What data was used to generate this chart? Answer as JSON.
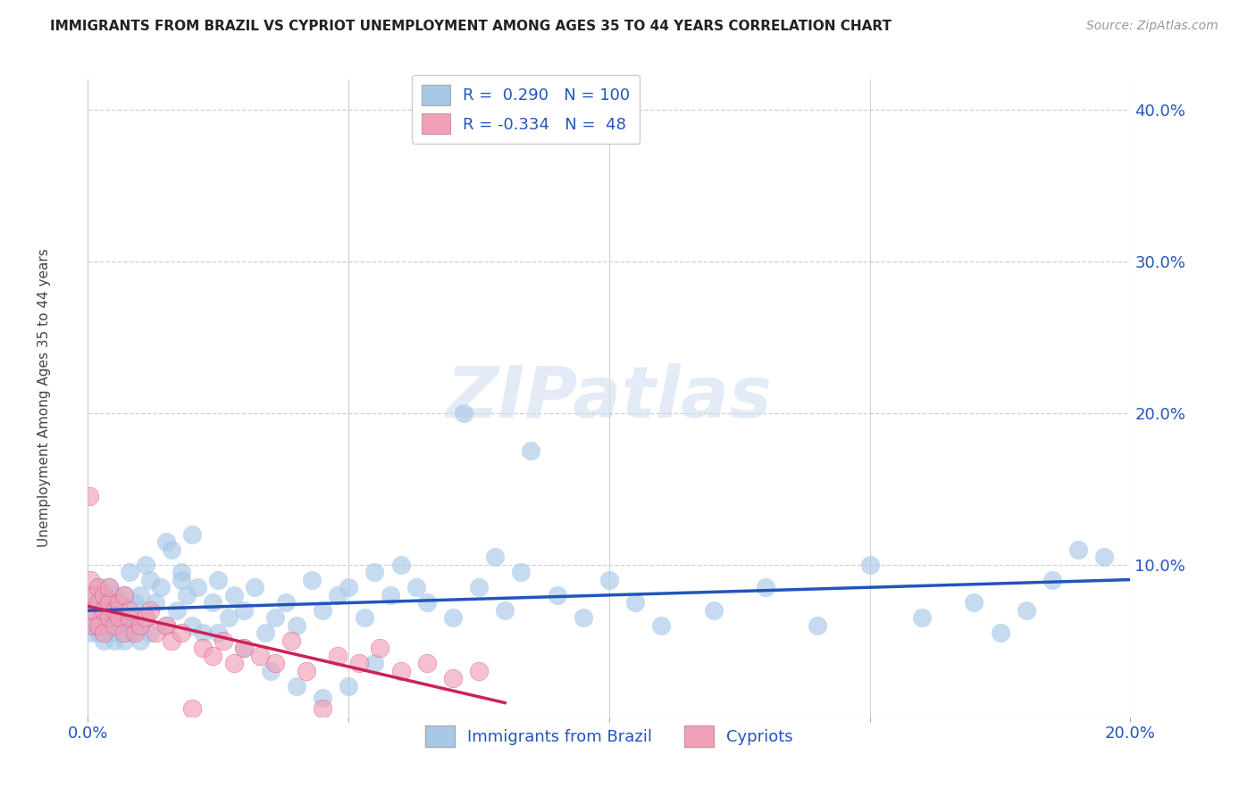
{
  "title": "IMMIGRANTS FROM BRAZIL VS CYPRIOT UNEMPLOYMENT AMONG AGES 35 TO 44 YEARS CORRELATION CHART",
  "source": "Source: ZipAtlas.com",
  "ylabel": "Unemployment Among Ages 35 to 44 years",
  "xlim": [
    0.0,
    0.2
  ],
  "ylim": [
    0.0,
    0.42
  ],
  "xticks": [
    0.0,
    0.05,
    0.1,
    0.15,
    0.2
  ],
  "yticks": [
    0.0,
    0.1,
    0.2,
    0.3,
    0.4
  ],
  "background_color": "#ffffff",
  "grid_color": "#d0d0d0",
  "blue_scatter_color": "#a8c8e8",
  "blue_line_color": "#2255bb",
  "pink_scatter_color": "#f0a0b8",
  "pink_line_color": "#cc2255",
  "legend_R_blue": "0.290",
  "legend_N_blue": "100",
  "legend_R_pink": "-0.334",
  "legend_N_pink": "48",
  "watermark": "ZIPatlas",
  "brazil_x": [
    0.0005,
    0.001,
    0.001,
    0.001,
    0.002,
    0.002,
    0.002,
    0.002,
    0.003,
    0.003,
    0.003,
    0.003,
    0.004,
    0.004,
    0.004,
    0.004,
    0.005,
    0.005,
    0.005,
    0.005,
    0.006,
    0.006,
    0.006,
    0.007,
    0.007,
    0.007,
    0.008,
    0.008,
    0.008,
    0.009,
    0.009,
    0.01,
    0.01,
    0.011,
    0.011,
    0.012,
    0.012,
    0.013,
    0.014,
    0.015,
    0.016,
    0.017,
    0.018,
    0.019,
    0.02,
    0.021,
    0.022,
    0.024,
    0.025,
    0.027,
    0.028,
    0.03,
    0.032,
    0.034,
    0.036,
    0.038,
    0.04,
    0.043,
    0.045,
    0.048,
    0.05,
    0.053,
    0.055,
    0.058,
    0.06,
    0.063,
    0.065,
    0.07,
    0.072,
    0.075,
    0.078,
    0.08,
    0.083,
    0.085,
    0.09,
    0.095,
    0.1,
    0.105,
    0.11,
    0.12,
    0.13,
    0.14,
    0.15,
    0.16,
    0.17,
    0.175,
    0.18,
    0.185,
    0.19,
    0.195,
    0.015,
    0.018,
    0.02,
    0.025,
    0.03,
    0.035,
    0.04,
    0.045,
    0.05,
    0.055
  ],
  "brazil_y": [
    0.055,
    0.06,
    0.07,
    0.08,
    0.055,
    0.065,
    0.075,
    0.085,
    0.06,
    0.07,
    0.08,
    0.05,
    0.055,
    0.065,
    0.075,
    0.085,
    0.05,
    0.06,
    0.07,
    0.08,
    0.055,
    0.065,
    0.075,
    0.05,
    0.06,
    0.08,
    0.055,
    0.065,
    0.095,
    0.06,
    0.075,
    0.05,
    0.08,
    0.065,
    0.1,
    0.055,
    0.09,
    0.075,
    0.085,
    0.06,
    0.11,
    0.07,
    0.095,
    0.08,
    0.06,
    0.085,
    0.055,
    0.075,
    0.09,
    0.065,
    0.08,
    0.07,
    0.085,
    0.055,
    0.065,
    0.075,
    0.06,
    0.09,
    0.07,
    0.08,
    0.085,
    0.065,
    0.095,
    0.08,
    0.1,
    0.085,
    0.075,
    0.065,
    0.2,
    0.085,
    0.105,
    0.07,
    0.095,
    0.175,
    0.08,
    0.065,
    0.09,
    0.075,
    0.06,
    0.07,
    0.085,
    0.06,
    0.1,
    0.065,
    0.075,
    0.055,
    0.07,
    0.09,
    0.11,
    0.105,
    0.115,
    0.09,
    0.12,
    0.055,
    0.045,
    0.03,
    0.02,
    0.012,
    0.02,
    0.035
  ],
  "cypriot_x": [
    0.0003,
    0.0005,
    0.001,
    0.001,
    0.001,
    0.002,
    0.002,
    0.002,
    0.003,
    0.003,
    0.003,
    0.004,
    0.004,
    0.004,
    0.005,
    0.005,
    0.006,
    0.006,
    0.007,
    0.007,
    0.008,
    0.008,
    0.009,
    0.01,
    0.011,
    0.012,
    0.013,
    0.015,
    0.016,
    0.018,
    0.02,
    0.022,
    0.024,
    0.026,
    0.028,
    0.03,
    0.033,
    0.036,
    0.039,
    0.042,
    0.045,
    0.048,
    0.052,
    0.056,
    0.06,
    0.065,
    0.07,
    0.075
  ],
  "cypriot_y": [
    0.145,
    0.09,
    0.06,
    0.08,
    0.07,
    0.06,
    0.075,
    0.085,
    0.07,
    0.08,
    0.055,
    0.065,
    0.075,
    0.085,
    0.06,
    0.07,
    0.065,
    0.075,
    0.055,
    0.08,
    0.065,
    0.07,
    0.055,
    0.06,
    0.065,
    0.07,
    0.055,
    0.06,
    0.05,
    0.055,
    0.005,
    0.045,
    0.04,
    0.05,
    0.035,
    0.045,
    0.04,
    0.035,
    0.05,
    0.03,
    0.005,
    0.04,
    0.035,
    0.045,
    0.03,
    0.035,
    0.025,
    0.03
  ]
}
